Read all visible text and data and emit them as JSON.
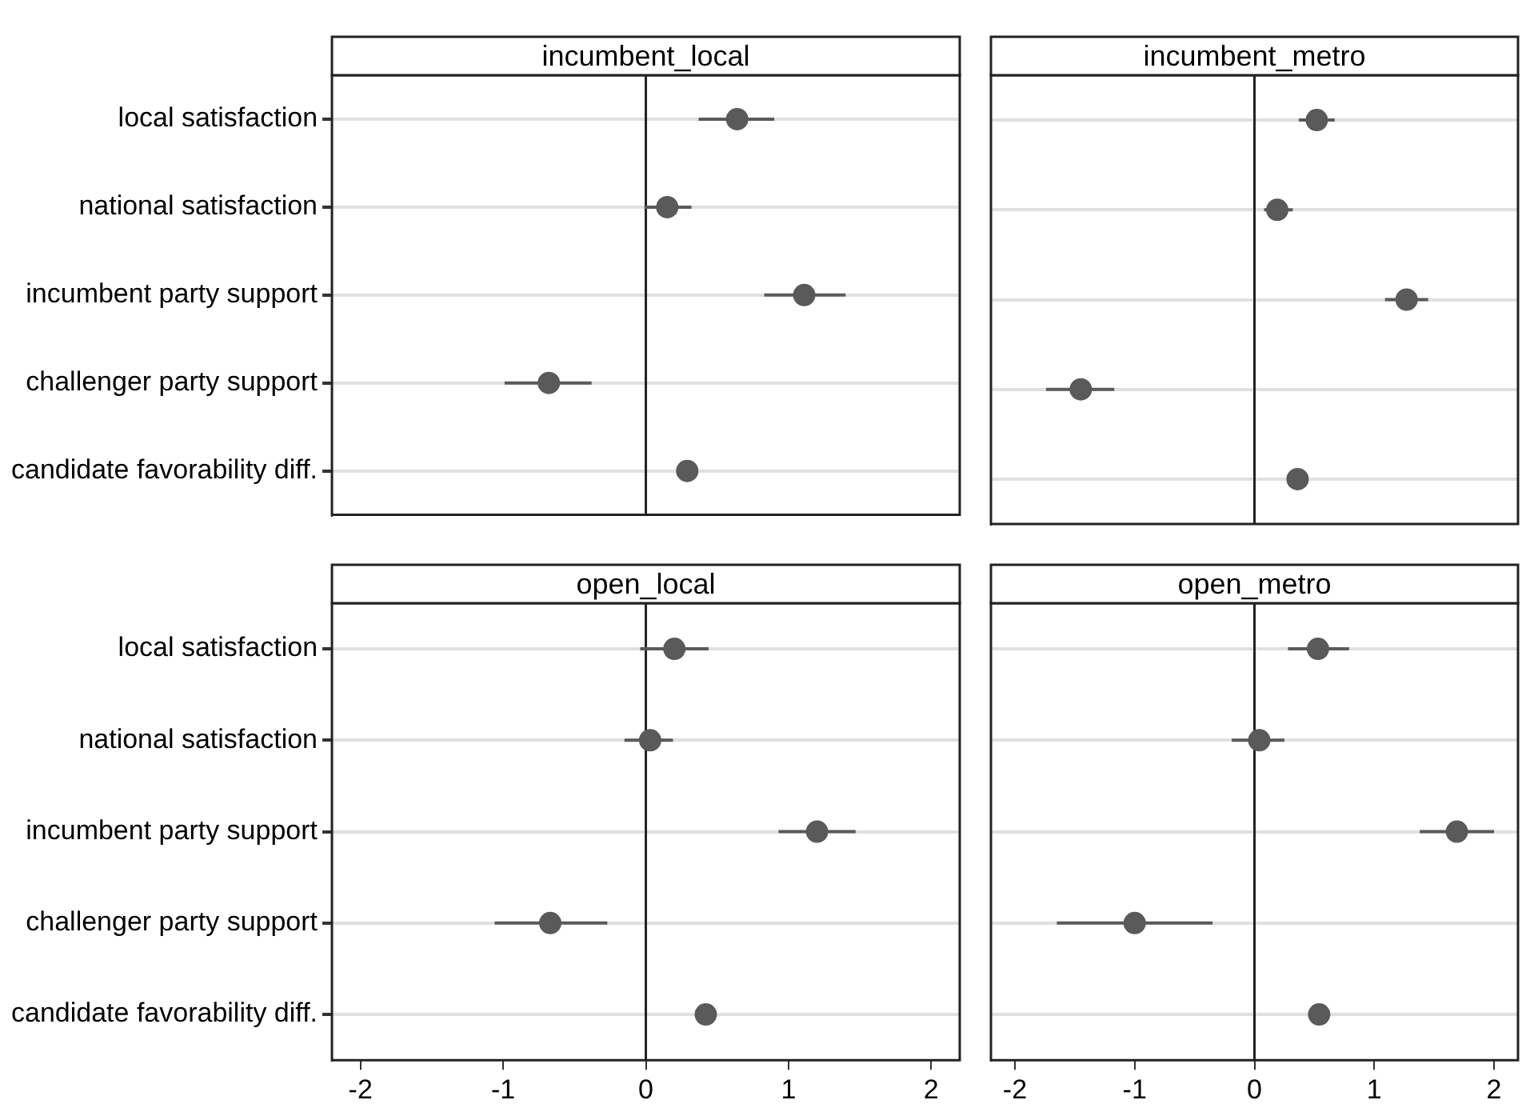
{
  "chart_data": [
    {
      "type": "scatter",
      "orientation": "horizontal",
      "title": "incumbent_local",
      "categories": [
        "local satisfaction",
        "national satisfaction",
        "incumbent party support",
        "challenger party support",
        "candidate favorability diff."
      ],
      "values": [
        0.64,
        0.15,
        1.11,
        -0.68,
        0.29
      ],
      "errors": [
        [
          0.37,
          0.9
        ],
        [
          -0.01,
          0.32
        ],
        [
          0.83,
          1.4
        ],
        [
          -0.99,
          -0.38
        ],
        null
      ],
      "color": "#5a5a5a",
      "xlim": [
        -2.2,
        2.2
      ],
      "xticks": [
        -2,
        -1,
        0,
        1,
        2
      ],
      "ref_lines": [
        {
          "axis": "x",
          "value": 0
        }
      ],
      "grid": "y",
      "marker": "circle",
      "legend": false,
      "tick_labels": "y"
    },
    {
      "type": "scatter",
      "orientation": "horizontal",
      "title": "incumbent_metro",
      "categories": [
        null,
        null,
        null,
        null,
        null
      ],
      "values": [
        0.52,
        0.19,
        1.27,
        -1.45,
        0.36
      ],
      "errors": [
        [
          0.37,
          0.67
        ],
        [
          0.08,
          0.32
        ],
        [
          1.09,
          1.45
        ],
        [
          -1.74,
          -1.17
        ],
        null
      ],
      "color": "#5a5a5a",
      "xlim": [
        -2.2,
        2.2
      ],
      "xticks": [
        -2,
        -1,
        0,
        1,
        2
      ],
      "ref_lines": [
        {
          "axis": "x",
          "value": 0
        }
      ],
      "grid": "y",
      "marker": "circle",
      "legend": false,
      "tick_labels": false
    },
    {
      "type": "scatter",
      "orientation": "horizontal",
      "title": "open_local",
      "categories": [
        "local satisfaction",
        "national satisfaction",
        "incumbent party support",
        "challenger party support",
        "candidate favorability diff."
      ],
      "values": [
        0.2,
        0.03,
        1.2,
        -0.67,
        0.42
      ],
      "errors": [
        [
          -0.04,
          0.44
        ],
        [
          -0.15,
          0.19
        ],
        [
          0.93,
          1.47
        ],
        [
          -1.06,
          -0.27
        ],
        null
      ],
      "color": "#5a5a5a",
      "xlim": [
        -2.2,
        2.2
      ],
      "xticks": [
        -2,
        -1,
        0,
        1,
        2
      ],
      "ref_lines": [
        {
          "axis": "x",
          "value": 0
        }
      ],
      "grid": "y",
      "marker": "circle",
      "legend": false
    },
    {
      "type": "scatter",
      "orientation": "horizontal",
      "title": "open_metro",
      "categories": [
        null,
        null,
        null,
        null,
        null
      ],
      "values": [
        0.53,
        0.04,
        1.69,
        -1.0,
        0.54
      ],
      "errors": [
        [
          0.28,
          0.79
        ],
        [
          -0.19,
          0.25
        ],
        [
          1.38,
          2.0
        ],
        [
          -1.65,
          -0.35
        ],
        null
      ],
      "color": "#5a5a5a",
      "xlim": [
        -2.2,
        2.2
      ],
      "xticks": [
        -2,
        -1,
        0,
        1,
        2
      ],
      "ref_lines": [
        {
          "axis": "x",
          "value": 0
        }
      ],
      "grid": "y",
      "marker": "circle",
      "legend": false,
      "tick_labels": "x"
    }
  ]
}
